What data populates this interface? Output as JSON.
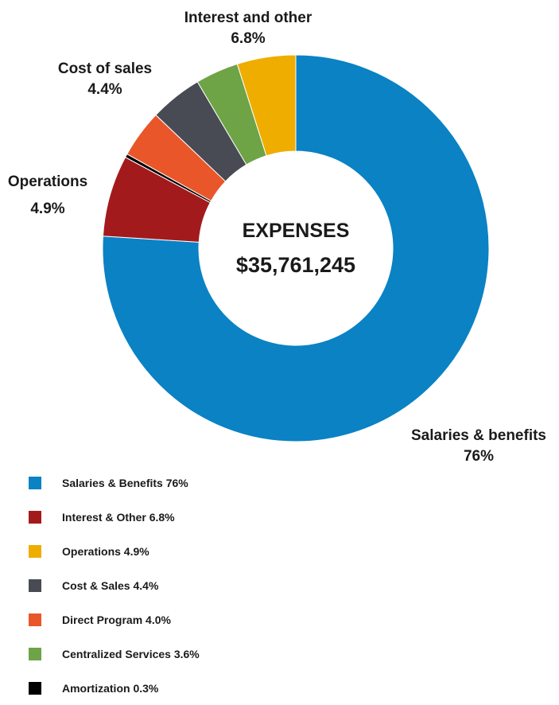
{
  "chart_data": {
    "type": "pie",
    "donut": true,
    "center_label": "EXPENSES",
    "center_value": "$35,761,245",
    "slices": [
      {
        "key": "salaries",
        "label": "Salaries & benefits",
        "value": 76,
        "value_label": "76%",
        "color": "#0a82c4"
      },
      {
        "key": "interest",
        "label": "Interest and other",
        "value": 6.8,
        "value_label": "6.8%",
        "color": "#a31a1d"
      },
      {
        "key": "amortization",
        "label": "Amortization",
        "value": 0.3,
        "value_label": "0.3%",
        "color": "#000000"
      },
      {
        "key": "direct",
        "label": "Direct Program",
        "value": 4.0,
        "value_label": "4.0%",
        "color": "#e8562a"
      },
      {
        "key": "cost",
        "label": "Cost of sales",
        "value": 4.4,
        "value_label": "4.4%",
        "color": "#484b53"
      },
      {
        "key": "centralized",
        "label": "Centralized Services",
        "value": 3.6,
        "value_label": "3.6%",
        "color": "#6ea346"
      },
      {
        "key": "operations",
        "label": "Operations",
        "value": 4.9,
        "value_label": "4.9%",
        "color": "#efad00"
      }
    ],
    "callouts": [
      {
        "slice": "interest",
        "lines": [
          "Interest and other",
          "6.8%"
        ]
      },
      {
        "slice": "cost",
        "lines": [
          "Cost of sales",
          "4.4%"
        ]
      },
      {
        "slice": "operations",
        "lines": [
          "Operations",
          "4.9%"
        ]
      },
      {
        "slice": "salaries",
        "lines": [
          "Salaries & benefits",
          "76%"
        ]
      }
    ],
    "legend": {
      "placement": "bottom-left",
      "items": [
        {
          "label": "Salaries & Benefits 76%",
          "color": "#0a82c4"
        },
        {
          "label": "Interest & Other 6.8%",
          "color": "#a31a1d"
        },
        {
          "label": "Operations 4.9%",
          "color": "#efad00"
        },
        {
          "label": "Cost & Sales 4.4%",
          "color": "#484b53"
        },
        {
          "label": "Direct Program 4.0%",
          "color": "#e8562a"
        },
        {
          "label": "Centralized Services 3.6%",
          "color": "#6ea346"
        },
        {
          "label": "Amortization 0.3%",
          "color": "#000000"
        }
      ]
    }
  }
}
